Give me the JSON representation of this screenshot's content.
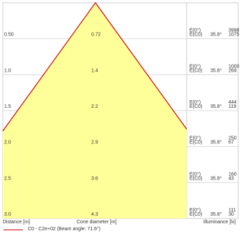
{
  "chart_data": {
    "type": "area",
    "title": "",
    "beam_angle_deg": 71.6,
    "distance_label": "Distance [m]",
    "cone_label": "Cone diameter [m]",
    "illuminance_label": "Illuminance [lx]",
    "series": [
      {
        "name": "C0 - C2e+02 (Beam angle: 71.6°)",
        "color": "#cc0000"
      }
    ],
    "fill_color": "#ffff99",
    "rows": [
      {
        "distance": "0.50",
        "cone": "0.72",
        "e0_label": "E(0°)",
        "ec0_label": "E(C0)",
        "angle": "35.8°",
        "e0": "3998",
        "ec0": "1075"
      },
      {
        "distance": "1.0",
        "cone": "1.4",
        "e0_label": "E(0°)",
        "ec0_label": "E(C0)",
        "angle": "35.8°",
        "e0": "1000",
        "ec0": "269"
      },
      {
        "distance": "1.5",
        "cone": "2.2",
        "e0_label": "E(0°)",
        "ec0_label": "E(C0)",
        "angle": "35.8°",
        "e0": "444",
        "ec0": "119"
      },
      {
        "distance": "2.0",
        "cone": "2.9",
        "e0_label": "E(0°)",
        "ec0_label": "E(C0)",
        "angle": "35.8°",
        "e0": "250",
        "ec0": "67"
      },
      {
        "distance": "2.5",
        "cone": "3.6",
        "e0_label": "E(0°)",
        "ec0_label": "E(C0)",
        "angle": "35.8°",
        "e0": "160",
        "ec0": "43"
      },
      {
        "distance": "3.0",
        "cone": "4.3",
        "e0_label": "E(0°)",
        "ec0_label": "E(C0)",
        "angle": "35.8°",
        "e0": "111",
        "ec0": "30"
      }
    ]
  }
}
